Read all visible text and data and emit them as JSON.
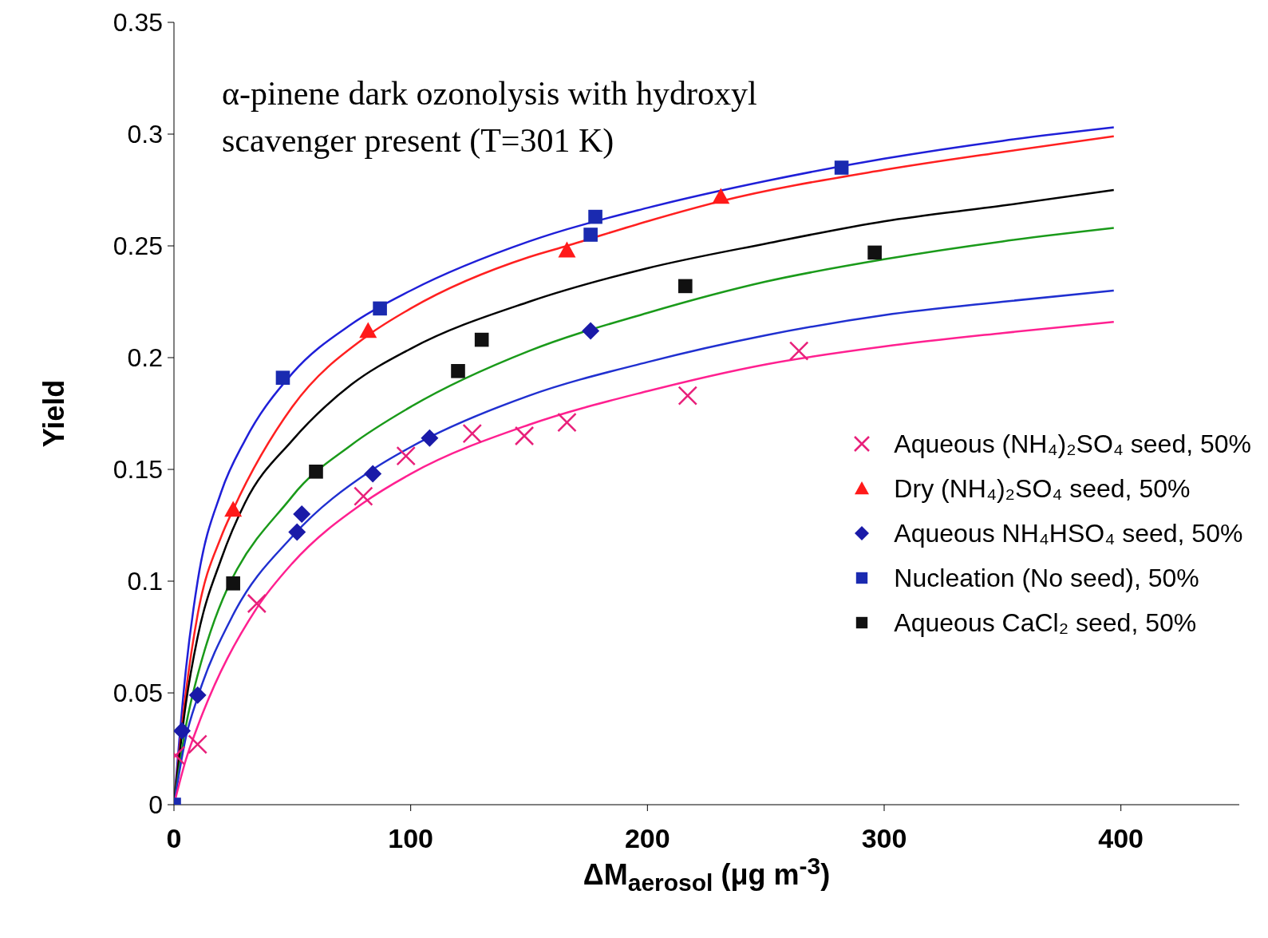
{
  "chart_data": {
    "type": "scatter",
    "title": "α-pinene dark ozonolysis with hydroxyl scavenger present (T=301 K)",
    "xlabel": "ΔM$_{aerosol}$ (μg m$^{-3}$)",
    "ylabel": "Yield",
    "xlim": [
      0,
      450
    ],
    "xticks": [
      0,
      100,
      200,
      300,
      400
    ],
    "ylim": [
      0,
      0.35
    ],
    "yticks": [
      0,
      0.05,
      0.1,
      0.15,
      0.2,
      0.25,
      0.3,
      0.35
    ],
    "legend": "right",
    "line_style": "solid",
    "series": [
      {
        "name": "Aqueous (NH₄)₂SO₄ seed, 50%",
        "marker": "cross",
        "color": "#e8207a",
        "x": [
          0.7,
          10,
          35,
          80,
          98,
          126,
          148,
          166,
          217,
          264
        ],
        "values": [
          0.022,
          0.027,
          0.09,
          0.138,
          0.156,
          0.166,
          0.165,
          0.171,
          0.183,
          0.203
        ]
      },
      {
        "name": "Dry (NH₄)₂SO₄ seed, 50%",
        "marker": "triangle",
        "color": "#ff1a1a",
        "x": [
          25,
          82,
          166,
          231
        ],
        "values": [
          0.132,
          0.212,
          0.248,
          0.272
        ]
      },
      {
        "name": "Aqueous NH₄HSO₄ seed, 50%",
        "marker": "diamond",
        "color": "#1a1aa8",
        "x": [
          3.4,
          10,
          52,
          54,
          84,
          108,
          176
        ],
        "values": [
          0.033,
          0.049,
          0.122,
          0.13,
          0.148,
          0.164,
          0.212
        ]
      },
      {
        "name": "Nucleation (No seed), 50%",
        "marker": "square",
        "color": "#1a2ab0",
        "x": [
          0,
          46,
          87,
          176,
          178,
          282
        ],
        "values": [
          0,
          0.191,
          0.222,
          0.255,
          0.263,
          0.285
        ]
      },
      {
        "name": "Aqueous CaCl₂ seed, 50%",
        "marker": "square",
        "color": "#111111",
        "x": [
          25,
          60,
          120,
          130,
          216,
          296
        ],
        "values": [
          0.099,
          0.149,
          0.194,
          0.208,
          0.232,
          0.247
        ]
      },
      {
        "type": "line",
        "marker": "none",
        "color": "#1f1fd8",
        "x": [
          0,
          5,
          10,
          20,
          30,
          50,
          75,
          100,
          150,
          200,
          250,
          300,
          350,
          397
        ],
        "values": [
          0,
          0.06,
          0.1,
          0.14,
          0.163,
          0.193,
          0.215,
          0.23,
          0.252,
          0.267,
          0.279,
          0.289,
          0.297,
          0.303
        ]
      },
      {
        "type": "line",
        "marker": "none",
        "color": "#ff2020",
        "x": [
          0,
          5,
          10,
          20,
          25,
          50,
          82,
          100,
          150,
          166,
          200,
          231,
          300,
          350,
          397
        ],
        "values": [
          0,
          0.05,
          0.085,
          0.12,
          0.132,
          0.178,
          0.21,
          0.222,
          0.245,
          0.25,
          0.261,
          0.27,
          0.284,
          0.292,
          0.299
        ]
      },
      {
        "type": "line",
        "marker": "none",
        "color": "#000000",
        "x": [
          0,
          5,
          10,
          20,
          30,
          50,
          75,
          100,
          150,
          200,
          250,
          300,
          350,
          397
        ],
        "values": [
          0,
          0.045,
          0.075,
          0.11,
          0.135,
          0.163,
          0.188,
          0.204,
          0.225,
          0.24,
          0.251,
          0.261,
          0.268,
          0.275
        ]
      },
      {
        "type": "line",
        "marker": "none",
        "color": "#1a9a1a",
        "x": [
          0,
          5,
          10,
          50,
          75,
          100,
          150,
          200,
          250,
          300,
          350,
          397
        ],
        "values": [
          0,
          0.035,
          0.058,
          0.138,
          0.161,
          0.178,
          0.203,
          0.22,
          0.234,
          0.244,
          0.252,
          0.258
        ]
      },
      {
        "type": "line",
        "marker": "none",
        "color": "#2030d0",
        "x": [
          0,
          5,
          10,
          25,
          50,
          84,
          100,
          150,
          200,
          250,
          300,
          350,
          397
        ],
        "values": [
          0,
          0.03,
          0.048,
          0.085,
          0.12,
          0.15,
          0.16,
          0.183,
          0.198,
          0.21,
          0.219,
          0.225,
          0.23
        ]
      },
      {
        "type": "line",
        "marker": "none",
        "color": "#ff2090",
        "x": [
          0,
          5,
          10,
          35,
          50,
          80,
          100,
          150,
          200,
          250,
          300,
          350,
          397
        ],
        "values": [
          0,
          0.02,
          0.035,
          0.088,
          0.108,
          0.135,
          0.148,
          0.17,
          0.185,
          0.197,
          0.205,
          0.211,
          0.216
        ]
      }
    ]
  }
}
